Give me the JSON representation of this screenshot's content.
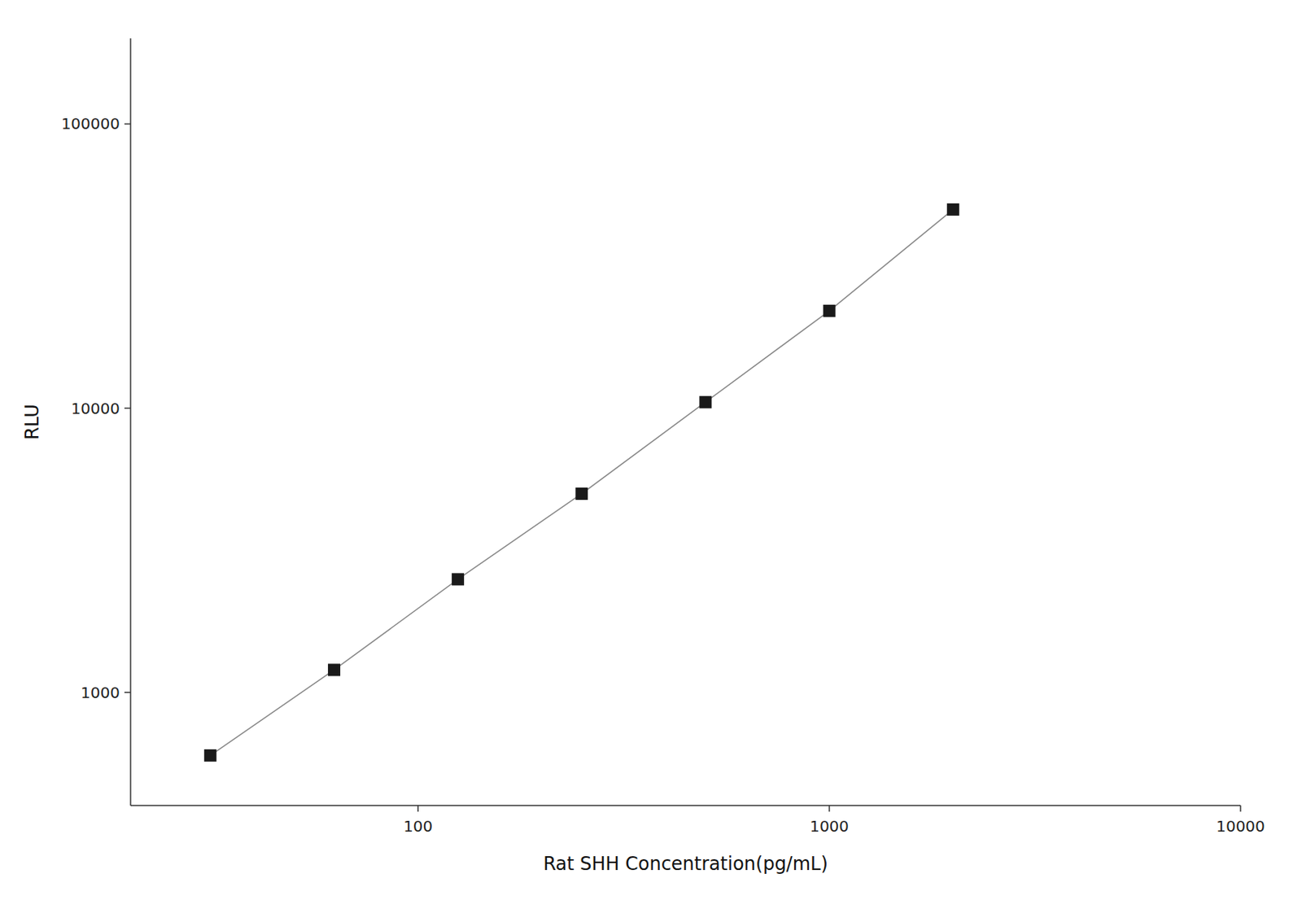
{
  "chart_data": {
    "type": "line",
    "x": [
      31.25,
      62.5,
      125,
      250,
      500,
      1000,
      2000
    ],
    "values": [
      600,
      1200,
      2500,
      5000,
      10500,
      22000,
      50000
    ],
    "xlabel": "Rat SHH Concentration(pg/mL)",
    "ylabel": "RLU",
    "xlim": [
      20,
      10000
    ],
    "ylim": [
      400,
      200000
    ],
    "xticks": [
      100,
      1000,
      10000
    ],
    "yticks": [
      1000,
      10000,
      100000
    ],
    "log": true,
    "grid": false,
    "color": "#1a1a1a",
    "marker": "square",
    "line_style": "solid"
  }
}
